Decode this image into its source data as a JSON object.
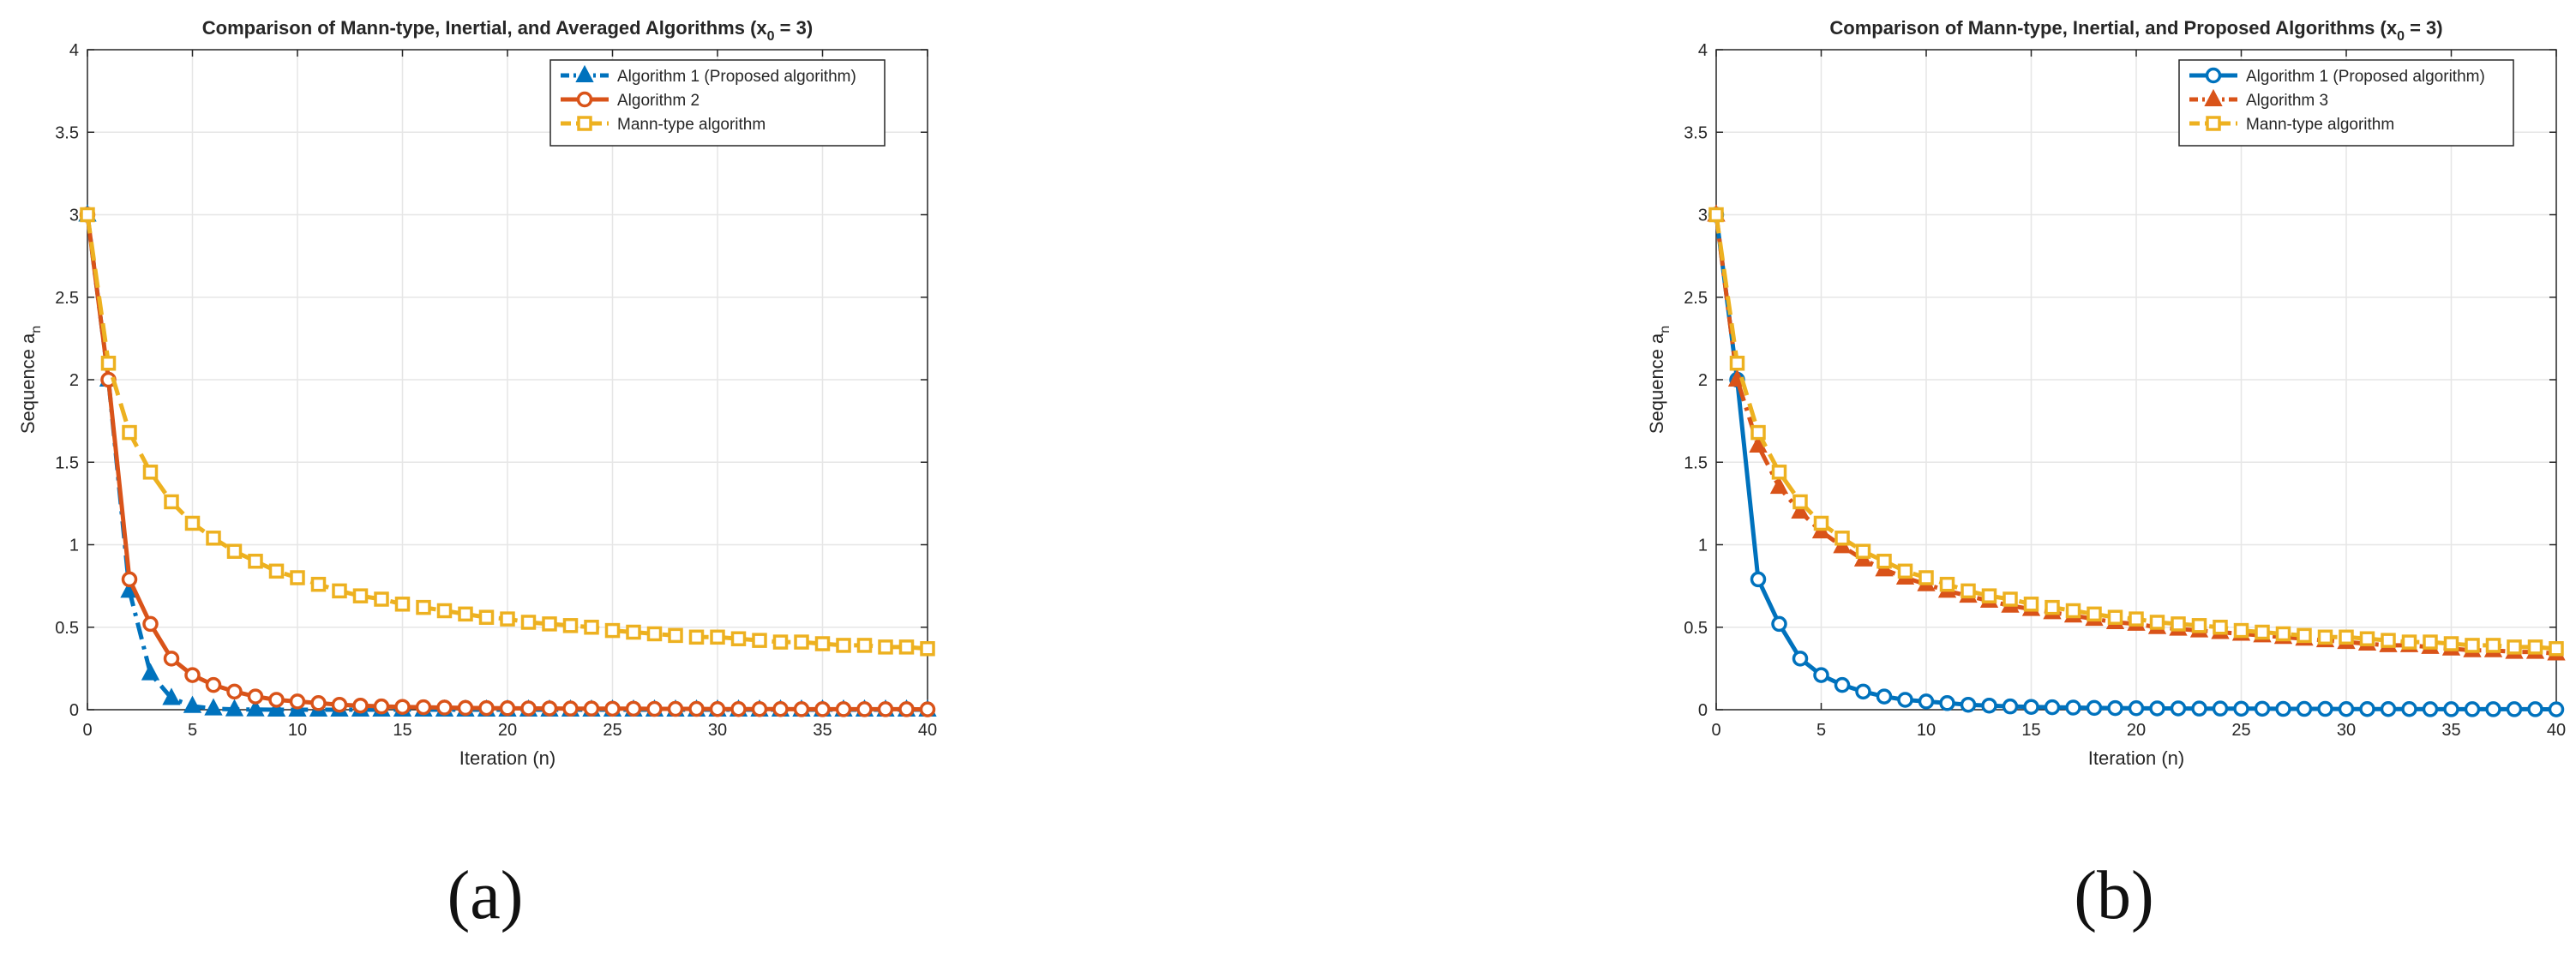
{
  "chart_data": [
    {
      "type": "line",
      "panel": "(a)",
      "title": "Comparison of Mann-type, Inertial, and Averaged Algorithms (x",
      "title_sub": "0",
      "title_tail": " = 3)",
      "xlabel": "Iteration (n)",
      "ylabel": "Sequence a",
      "ylabel_sub": "n",
      "xlim": [
        0,
        40
      ],
      "ylim": [
        0,
        4
      ],
      "xticks": [
        "0",
        "5",
        "10",
        "15",
        "20",
        "25",
        "30",
        "35",
        "40"
      ],
      "yticks": [
        "0",
        "0.5",
        "1",
        "1.5",
        "2",
        "2.5",
        "3",
        "3.5",
        "4"
      ],
      "grid": true,
      "legend_position": "top-right",
      "series": [
        {
          "name": "Algorithm 1 (Proposed algorithm)",
          "color": "#0072BD",
          "marker": "triangle",
          "dash": "dash-dot",
          "x": [
            0,
            1,
            2,
            3,
            4,
            5,
            6,
            7,
            8,
            9,
            10,
            11,
            12,
            13,
            14,
            15,
            16,
            17,
            18,
            19,
            20,
            21,
            22,
            23,
            24,
            25,
            26,
            27,
            28,
            29,
            30,
            31,
            32,
            33,
            34,
            35,
            36,
            37,
            38,
            39,
            40
          ],
          "values": [
            3,
            2.0,
            0.72,
            0.22,
            0.07,
            0.022,
            0.007,
            0.002,
            0.001,
            0,
            0,
            0,
            0,
            0,
            0,
            0,
            0,
            0,
            0,
            0,
            0,
            0,
            0,
            0,
            0,
            0,
            0,
            0,
            0,
            0,
            0,
            0,
            0,
            0,
            0,
            0,
            0,
            0,
            0,
            0,
            0
          ]
        },
        {
          "name": "Algorithm 2",
          "color": "#D95319",
          "marker": "circle",
          "dash": "solid",
          "x": [
            0,
            1,
            2,
            3,
            4,
            5,
            6,
            7,
            8,
            9,
            10,
            11,
            12,
            13,
            14,
            15,
            16,
            17,
            18,
            19,
            20,
            21,
            22,
            23,
            24,
            25,
            26,
            27,
            28,
            29,
            30,
            31,
            32,
            33,
            34,
            35,
            36,
            37,
            38,
            39,
            40
          ],
          "values": [
            3,
            2.0,
            0.79,
            0.52,
            0.31,
            0.21,
            0.15,
            0.11,
            0.08,
            0.06,
            0.05,
            0.04,
            0.03,
            0.025,
            0.02,
            0.017,
            0.015,
            0.013,
            0.011,
            0.01,
            0.009,
            0.008,
            0.008,
            0.007,
            0.007,
            0.006,
            0.006,
            0.005,
            0.005,
            0.005,
            0.004,
            0.004,
            0.004,
            0.004,
            0.003,
            0.003,
            0.003,
            0.003,
            0.003,
            0.003,
            0.002
          ]
        },
        {
          "name": "Mann-type algorithm",
          "color": "#EDB120",
          "marker": "square",
          "dash": "dash",
          "x": [
            0,
            1,
            2,
            3,
            4,
            5,
            6,
            7,
            8,
            9,
            10,
            11,
            12,
            13,
            14,
            15,
            16,
            17,
            18,
            19,
            20,
            21,
            22,
            23,
            24,
            25,
            26,
            27,
            28,
            29,
            30,
            31,
            32,
            33,
            34,
            35,
            36,
            37,
            38,
            39,
            40
          ],
          "values": [
            3,
            2.1,
            1.68,
            1.44,
            1.26,
            1.13,
            1.04,
            0.96,
            0.9,
            0.84,
            0.8,
            0.76,
            0.72,
            0.69,
            0.67,
            0.64,
            0.62,
            0.6,
            0.58,
            0.56,
            0.55,
            0.53,
            0.52,
            0.51,
            0.5,
            0.48,
            0.47,
            0.46,
            0.45,
            0.44,
            0.44,
            0.43,
            0.42,
            0.41,
            0.41,
            0.4,
            0.39,
            0.39,
            0.38,
            0.38,
            0.37
          ]
        }
      ]
    },
    {
      "type": "line",
      "panel": "(b)",
      "title": "Comparison of Mann-type, Inertial, and Proposed Algorithms (x",
      "title_sub": "0",
      "title_tail": " = 3)",
      "xlabel": "Iteration (n)",
      "ylabel": "Sequence a",
      "ylabel_sub": "n",
      "xlim": [
        0,
        40
      ],
      "ylim": [
        0,
        4
      ],
      "xticks": [
        "0",
        "5",
        "10",
        "15",
        "20",
        "25",
        "30",
        "35",
        "40"
      ],
      "yticks": [
        "0",
        "0.5",
        "1",
        "1.5",
        "2",
        "2.5",
        "3",
        "3.5",
        "4"
      ],
      "grid": true,
      "legend_position": "top-right",
      "series": [
        {
          "name": "Algorithm 1 (Proposed algorithm)",
          "color": "#0072BD",
          "marker": "circle",
          "dash": "solid",
          "x": [
            0,
            1,
            2,
            3,
            4,
            5,
            6,
            7,
            8,
            9,
            10,
            11,
            12,
            13,
            14,
            15,
            16,
            17,
            18,
            19,
            20,
            21,
            22,
            23,
            24,
            25,
            26,
            27,
            28,
            29,
            30,
            31,
            32,
            33,
            34,
            35,
            36,
            37,
            38,
            39,
            40
          ],
          "values": [
            3,
            2.0,
            0.79,
            0.52,
            0.31,
            0.21,
            0.15,
            0.11,
            0.08,
            0.06,
            0.05,
            0.04,
            0.03,
            0.025,
            0.02,
            0.017,
            0.015,
            0.013,
            0.011,
            0.01,
            0.009,
            0.008,
            0.008,
            0.007,
            0.007,
            0.006,
            0.006,
            0.005,
            0.005,
            0.005,
            0.004,
            0.004,
            0.004,
            0.004,
            0.003,
            0.003,
            0.003,
            0.003,
            0.003,
            0.003,
            0.002
          ]
        },
        {
          "name": "Algorithm 3",
          "color": "#D95319",
          "marker": "triangle",
          "dash": "dash-dot",
          "x": [
            0,
            1,
            2,
            3,
            4,
            5,
            6,
            7,
            8,
            9,
            10,
            11,
            12,
            13,
            14,
            15,
            16,
            17,
            18,
            19,
            20,
            21,
            22,
            23,
            24,
            25,
            26,
            27,
            28,
            29,
            30,
            31,
            32,
            33,
            34,
            35,
            36,
            37,
            38,
            39,
            40
          ],
          "values": [
            3,
            2.0,
            1.6,
            1.35,
            1.2,
            1.08,
            0.99,
            0.91,
            0.85,
            0.8,
            0.76,
            0.72,
            0.69,
            0.66,
            0.63,
            0.61,
            0.59,
            0.57,
            0.55,
            0.53,
            0.52,
            0.5,
            0.49,
            0.48,
            0.47,
            0.46,
            0.45,
            0.44,
            0.43,
            0.42,
            0.41,
            0.4,
            0.39,
            0.39,
            0.38,
            0.37,
            0.36,
            0.36,
            0.35,
            0.35,
            0.34
          ]
        },
        {
          "name": "Mann-type algorithm",
          "color": "#EDB120",
          "marker": "square",
          "dash": "dash",
          "x": [
            0,
            1,
            2,
            3,
            4,
            5,
            6,
            7,
            8,
            9,
            10,
            11,
            12,
            13,
            14,
            15,
            16,
            17,
            18,
            19,
            20,
            21,
            22,
            23,
            24,
            25,
            26,
            27,
            28,
            29,
            30,
            31,
            32,
            33,
            34,
            35,
            36,
            37,
            38,
            39,
            40
          ],
          "values": [
            3,
            2.1,
            1.68,
            1.44,
            1.26,
            1.13,
            1.04,
            0.96,
            0.9,
            0.84,
            0.8,
            0.76,
            0.72,
            0.69,
            0.67,
            0.64,
            0.62,
            0.6,
            0.58,
            0.56,
            0.55,
            0.53,
            0.52,
            0.51,
            0.5,
            0.48,
            0.47,
            0.46,
            0.45,
            0.44,
            0.44,
            0.43,
            0.42,
            0.41,
            0.41,
            0.4,
            0.39,
            0.39,
            0.38,
            0.38,
            0.37
          ]
        }
      ]
    }
  ]
}
